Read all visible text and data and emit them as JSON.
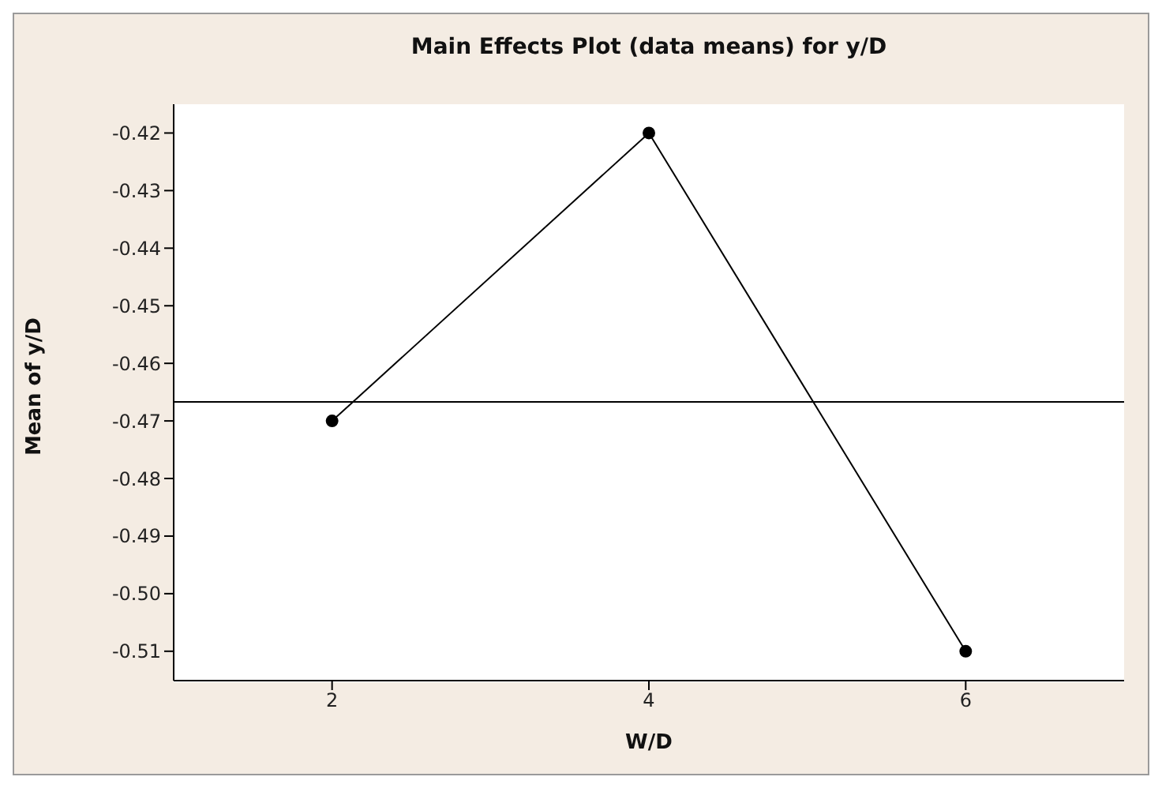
{
  "chart_data": {
    "type": "line",
    "title": "Main Effects Plot (data means) for y/D",
    "xlabel": "W/D",
    "ylabel": "Mean of y/D",
    "x": [
      2,
      4,
      6
    ],
    "series": [
      {
        "color": "#000000",
        "values": [
          -0.47,
          -0.42,
          -0.51
        ]
      }
    ],
    "xlim": [
      1,
      7
    ],
    "xticks": [
      2,
      4,
      6
    ],
    "ylim": [
      -0.5151,
      -0.415
    ],
    "yticks": [
      -0.42,
      -0.43,
      -0.44,
      -0.45,
      -0.46,
      -0.47,
      -0.48,
      -0.49,
      {
        "value": -0.5,
        "label": "-0.50"
      },
      -0.51
    ],
    "ref_lines": [
      {
        "axis": "y",
        "value": -0.4667,
        "color": "#000000"
      }
    ],
    "marker": "circle",
    "line_style": "solid",
    "grid": false,
    "legend": false
  }
}
